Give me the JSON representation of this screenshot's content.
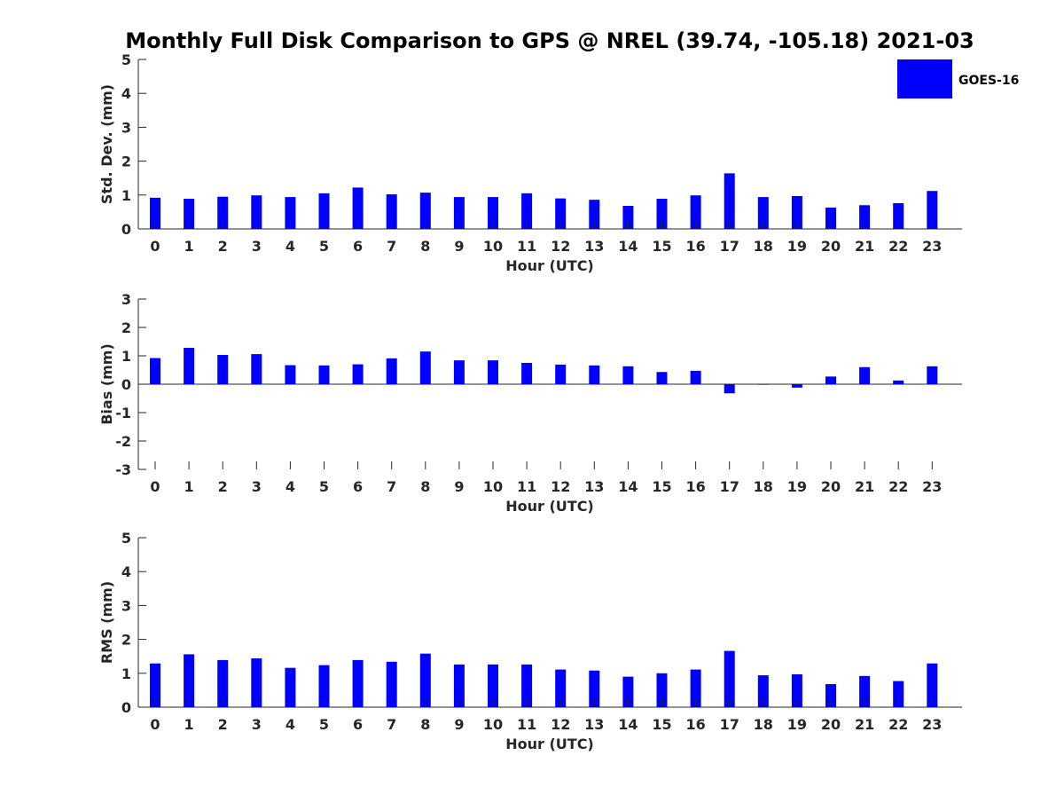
{
  "title": "Monthly Full Disk Comparison to GPS @ NREL (39.74, -105.18) 2021-03",
  "legend": {
    "label": "GOES-16",
    "color": "#0000ff",
    "placement": "top-right"
  },
  "chart_data": [
    {
      "type": "bar",
      "categories": [
        "0",
        "1",
        "2",
        "3",
        "4",
        "5",
        "6",
        "7",
        "8",
        "9",
        "10",
        "11",
        "12",
        "13",
        "14",
        "15",
        "16",
        "17",
        "18",
        "19",
        "20",
        "21",
        "22",
        "23"
      ],
      "series": [
        {
          "name": "GOES-16",
          "values": [
            0.92,
            0.89,
            0.95,
            0.99,
            0.94,
            1.05,
            1.22,
            1.02,
            1.07,
            0.94,
            0.94,
            1.05,
            0.9,
            0.86,
            0.68,
            0.89,
            0.99,
            1.64,
            0.94,
            0.97,
            0.63,
            0.7,
            0.76,
            1.12
          ]
        }
      ],
      "xlabel": "Hour (UTC)",
      "ylabel": "Std. Dev. (mm)",
      "ylim": [
        0,
        5
      ],
      "yticks": [
        "0",
        "1",
        "2",
        "3",
        "4",
        "5"
      ],
      "grid": false
    },
    {
      "type": "bar",
      "categories": [
        "0",
        "1",
        "2",
        "3",
        "4",
        "5",
        "6",
        "7",
        "8",
        "9",
        "10",
        "11",
        "12",
        "13",
        "14",
        "15",
        "16",
        "17",
        "18",
        "19",
        "20",
        "21",
        "22",
        "23"
      ],
      "series": [
        {
          "name": "GOES-16",
          "values": [
            0.92,
            1.28,
            1.03,
            1.06,
            0.67,
            0.66,
            0.7,
            0.91,
            1.15,
            0.84,
            0.84,
            0.75,
            0.69,
            0.66,
            0.63,
            0.43,
            0.47,
            -0.32,
            -0.02,
            -0.12,
            0.27,
            0.6,
            0.13,
            0.63
          ]
        }
      ],
      "xlabel": "Hour (UTC)",
      "ylabel": "Bias (mm)",
      "ylim": [
        -3,
        3
      ],
      "yticks": [
        "-3",
        "-2",
        "-1",
        "0",
        "1",
        "2",
        "3"
      ],
      "grid": false
    },
    {
      "type": "bar",
      "categories": [
        "0",
        "1",
        "2",
        "3",
        "4",
        "5",
        "6",
        "7",
        "8",
        "9",
        "10",
        "11",
        "12",
        "13",
        "14",
        "15",
        "16",
        "17",
        "18",
        "19",
        "20",
        "21",
        "22",
        "23"
      ],
      "series": [
        {
          "name": "GOES-16",
          "values": [
            1.29,
            1.56,
            1.39,
            1.44,
            1.16,
            1.24,
            1.39,
            1.34,
            1.58,
            1.26,
            1.26,
            1.26,
            1.11,
            1.08,
            0.9,
            1.0,
            1.11,
            1.66,
            0.94,
            0.97,
            0.68,
            0.92,
            0.77,
            1.29
          ]
        }
      ],
      "xlabel": "Hour (UTC)",
      "ylabel": "RMS (mm)",
      "ylim": [
        0,
        5
      ],
      "yticks": [
        "0",
        "1",
        "2",
        "3",
        "4",
        "5"
      ],
      "grid": false
    }
  ]
}
